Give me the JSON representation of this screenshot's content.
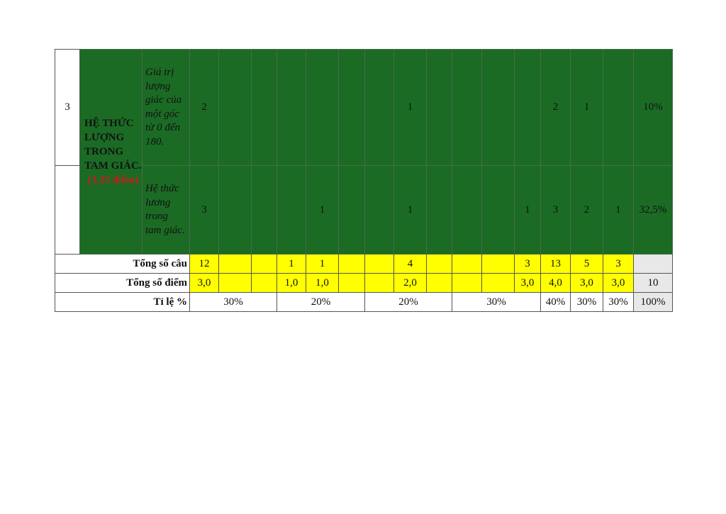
{
  "table": {
    "topic_number": "3",
    "topic_title": "HỆ THỨC LƯỢNG TRONG TAM GIÁC.",
    "topic_points": "(3,25 điểm)",
    "rows": [
      {
        "subtopic": "Giá trị lượng giác của một góc từ 0 đến 180.",
        "cells": [
          "2",
          "",
          "",
          "",
          "",
          "",
          "",
          "1",
          "",
          "",
          "",
          "",
          "2",
          "1",
          ""
        ],
        "ratio": "10%"
      },
      {
        "subtopic": "Hệ thức lương trong tam giác.",
        "cells": [
          "3",
          "",
          "",
          "",
          "1",
          "",
          "",
          "1",
          "",
          "",
          "",
          "1",
          "3",
          "2",
          "1"
        ],
        "ratio": "32,5%"
      }
    ],
    "total_questions": {
      "label": "Tổng số câu",
      "cells": [
        "12",
        "",
        "",
        "1",
        "1",
        "",
        "",
        "4",
        "",
        "",
        "",
        "3",
        "13",
        "5",
        "3"
      ],
      "last": ""
    },
    "total_points": {
      "label": "Tổng số điểm",
      "cells": [
        "3,0",
        "",
        "",
        "1,0",
        "1,0",
        "",
        "",
        "2,0",
        "",
        "",
        "",
        "3,0",
        "4,0",
        "3,0",
        "3,0"
      ],
      "last": "10"
    },
    "ratio_row": {
      "label": "Tỉ lệ %",
      "groups": [
        {
          "value": "30%",
          "span": 3
        },
        {
          "value": "20%",
          "span": 3
        },
        {
          "value": "20%",
          "span": 3
        },
        {
          "value": "30%",
          "span": 3
        },
        {
          "value": "40%",
          "span": 1
        },
        {
          "value": "30%",
          "span": 1
        },
        {
          "value": "30%",
          "span": 1
        }
      ],
      "last": "100%"
    }
  },
  "colors": {
    "topic_bg": "#1b6b25",
    "totals_bg": "#ffff00",
    "points_text": "#cc1a1a"
  }
}
